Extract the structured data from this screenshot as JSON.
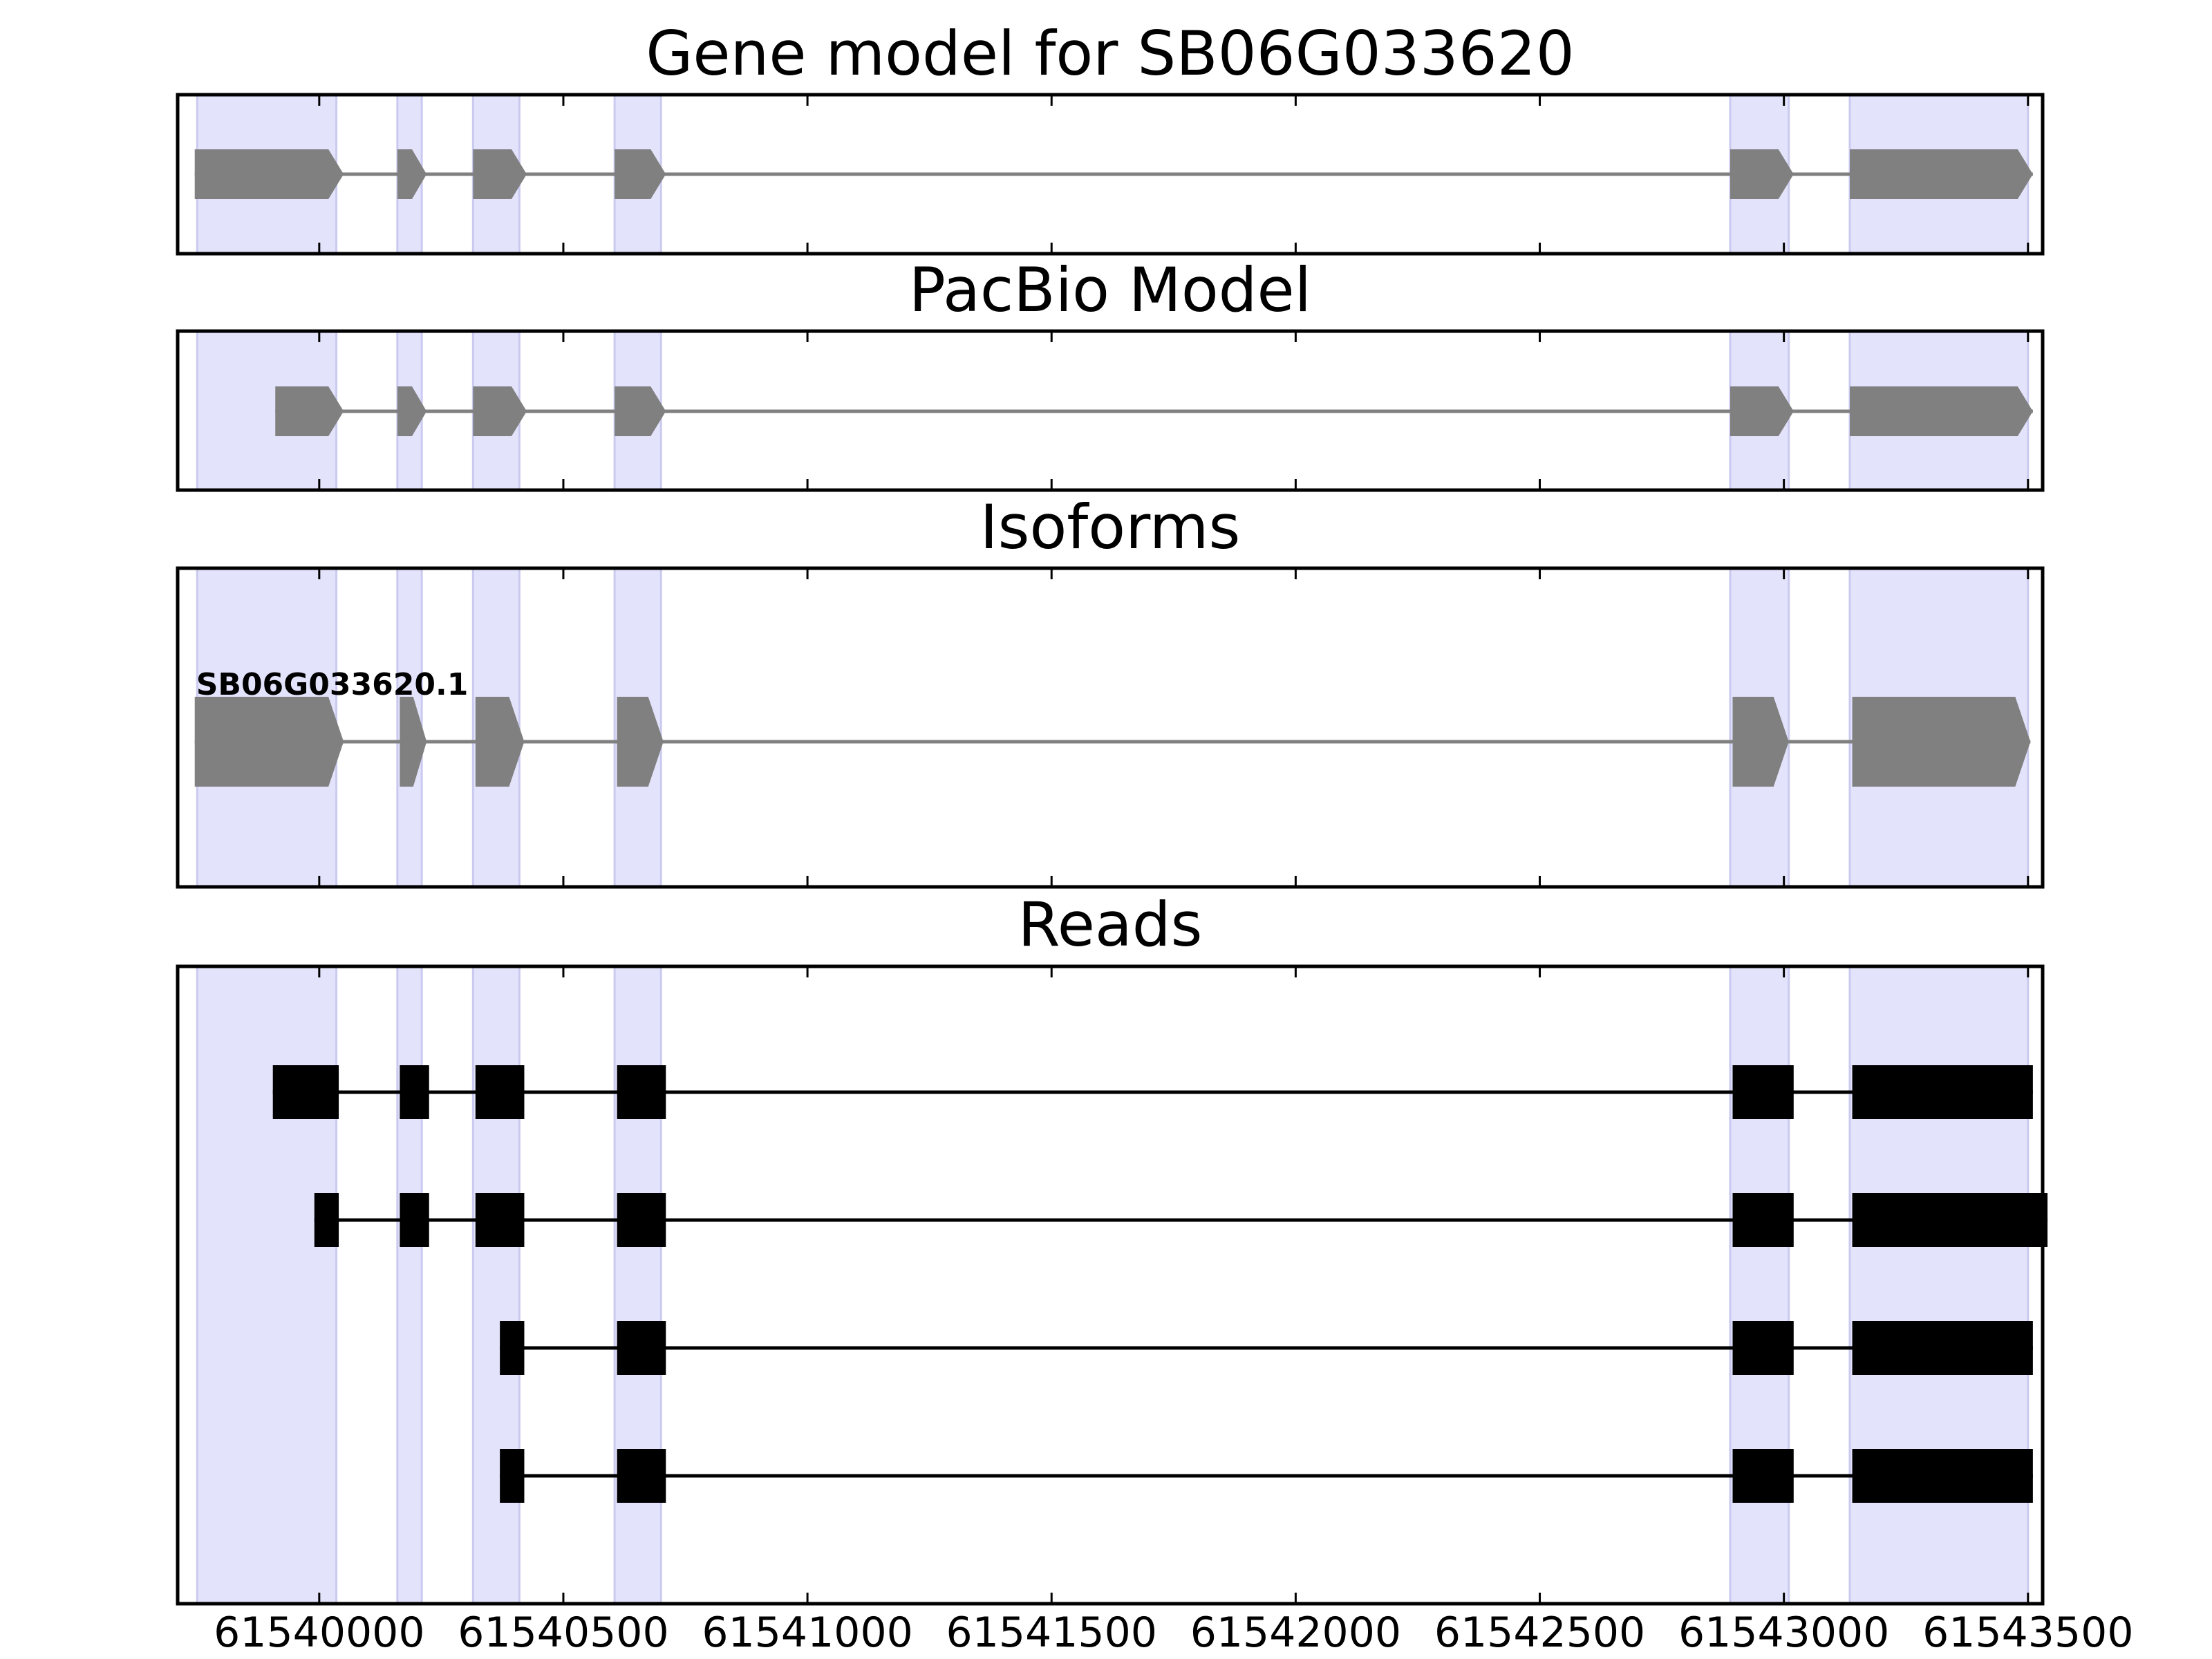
{
  "chart_data": {
    "type": "gene-structure",
    "x_axis": {
      "xlim": [
        61539710,
        61543530
      ],
      "tick_values": [
        61540000,
        61540500,
        61541000,
        61541500,
        61542000,
        61542500,
        61543000,
        61543500
      ],
      "tick_labels": [
        "61540000",
        "61540500",
        "61541000",
        "61541500",
        "61542000",
        "61542500",
        "61543000",
        "61543500"
      ]
    },
    "colors": {
      "highlight": "#e3e3fb",
      "highlight_edge": "#cacaf0",
      "model_feature": "#808080",
      "read_feature": "#000000",
      "frame": "#000000"
    },
    "highlight_regions": [
      [
        61539750,
        61540035
      ],
      [
        61540160,
        61540210
      ],
      [
        61540315,
        61540410
      ],
      [
        61540605,
        61540700
      ],
      [
        61542890,
        61543010
      ],
      [
        61543135,
        61543500
      ]
    ],
    "panels": [
      {
        "title": "Gene model for SB06G033620",
        "kind": "model",
        "tracks": [
          {
            "label": "",
            "exons": [
              [
                61539745,
                61540050
              ],
              [
                61540160,
                61540220
              ],
              [
                61540315,
                61540425
              ],
              [
                61540605,
                61540710
              ],
              [
                61542890,
                61543020
              ],
              [
                61543135,
                61543510
              ]
            ]
          }
        ]
      },
      {
        "title": "PacBio Model",
        "kind": "model",
        "tracks": [
          {
            "label": "",
            "exons": [
              [
                61539910,
                61540050
              ],
              [
                61540160,
                61540220
              ],
              [
                61540315,
                61540425
              ],
              [
                61540605,
                61540710
              ],
              [
                61542890,
                61543020
              ],
              [
                61543135,
                61543510
              ]
            ]
          }
        ]
      },
      {
        "title": "Isoforms",
        "kind": "isoform",
        "tracks": [
          {
            "label": "SB06G033620.1",
            "exons": [
              [
                61539745,
                61540050
              ],
              [
                61540165,
                61540220
              ],
              [
                61540320,
                61540420
              ],
              [
                61540610,
                61540705
              ],
              [
                61542895,
                61543010
              ],
              [
                61543140,
                61543505
              ]
            ]
          }
        ]
      },
      {
        "title": "Reads",
        "kind": "reads",
        "tracks": [
          {
            "label": "",
            "exons": [
              [
                61539905,
                61540040
              ],
              [
                61540165,
                61540225
              ],
              [
                61540320,
                61540420
              ],
              [
                61540610,
                61540710
              ],
              [
                61542895,
                61543020
              ],
              [
                61543140,
                61543510
              ]
            ]
          },
          {
            "label": "",
            "exons": [
              [
                61539990,
                61540040
              ],
              [
                61540165,
                61540225
              ],
              [
                61540320,
                61540420
              ],
              [
                61540610,
                61540710
              ],
              [
                61542895,
                61543020
              ],
              [
                61543140,
                61543540
              ]
            ]
          },
          {
            "label": "",
            "exons": [
              [
                61540370,
                61540420
              ],
              [
                61540610,
                61540710
              ],
              [
                61542895,
                61543020
              ],
              [
                61543140,
                61543510
              ]
            ]
          },
          {
            "label": "",
            "exons": [
              [
                61540370,
                61540420
              ],
              [
                61540610,
                61540710
              ],
              [
                61542895,
                61543020
              ],
              [
                61543140,
                61543510
              ]
            ]
          }
        ]
      }
    ]
  }
}
